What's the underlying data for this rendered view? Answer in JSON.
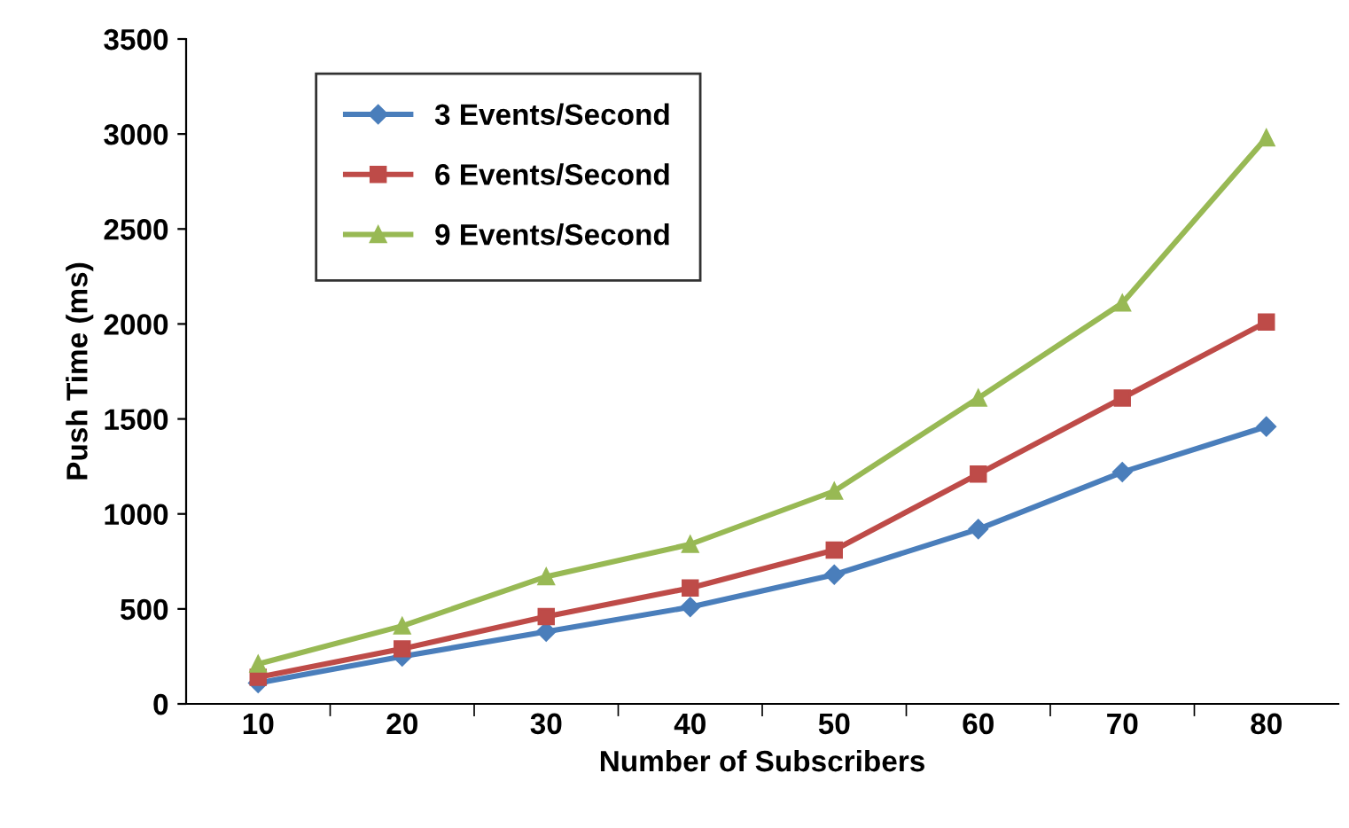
{
  "chart_data": {
    "type": "line",
    "xlabel": "Number of Subscribers",
    "ylabel": "Push Time (ms)",
    "categories": [
      "10",
      "20",
      "30",
      "40",
      "50",
      "60",
      "70",
      "80"
    ],
    "series": [
      {
        "name": "3 Events/Second",
        "color": "#4a7ebb",
        "marker": "diamond",
        "values": [
          110,
          250,
          380,
          510,
          680,
          920,
          1220,
          1460
        ]
      },
      {
        "name": "6 Events/Second",
        "color": "#be4b48",
        "marker": "square",
        "values": [
          140,
          290,
          460,
          610,
          810,
          1210,
          1610,
          2010
        ]
      },
      {
        "name": "9 Events/Second",
        "color": "#98b954",
        "marker": "triangle",
        "values": [
          210,
          410,
          670,
          840,
          1120,
          1610,
          2110,
          2980
        ]
      }
    ],
    "ylim": [
      0,
      3500
    ],
    "yticks": [
      0,
      500,
      1000,
      1500,
      2000,
      2500,
      3000,
      3500
    ],
    "grid": false,
    "legend": "top left"
  }
}
